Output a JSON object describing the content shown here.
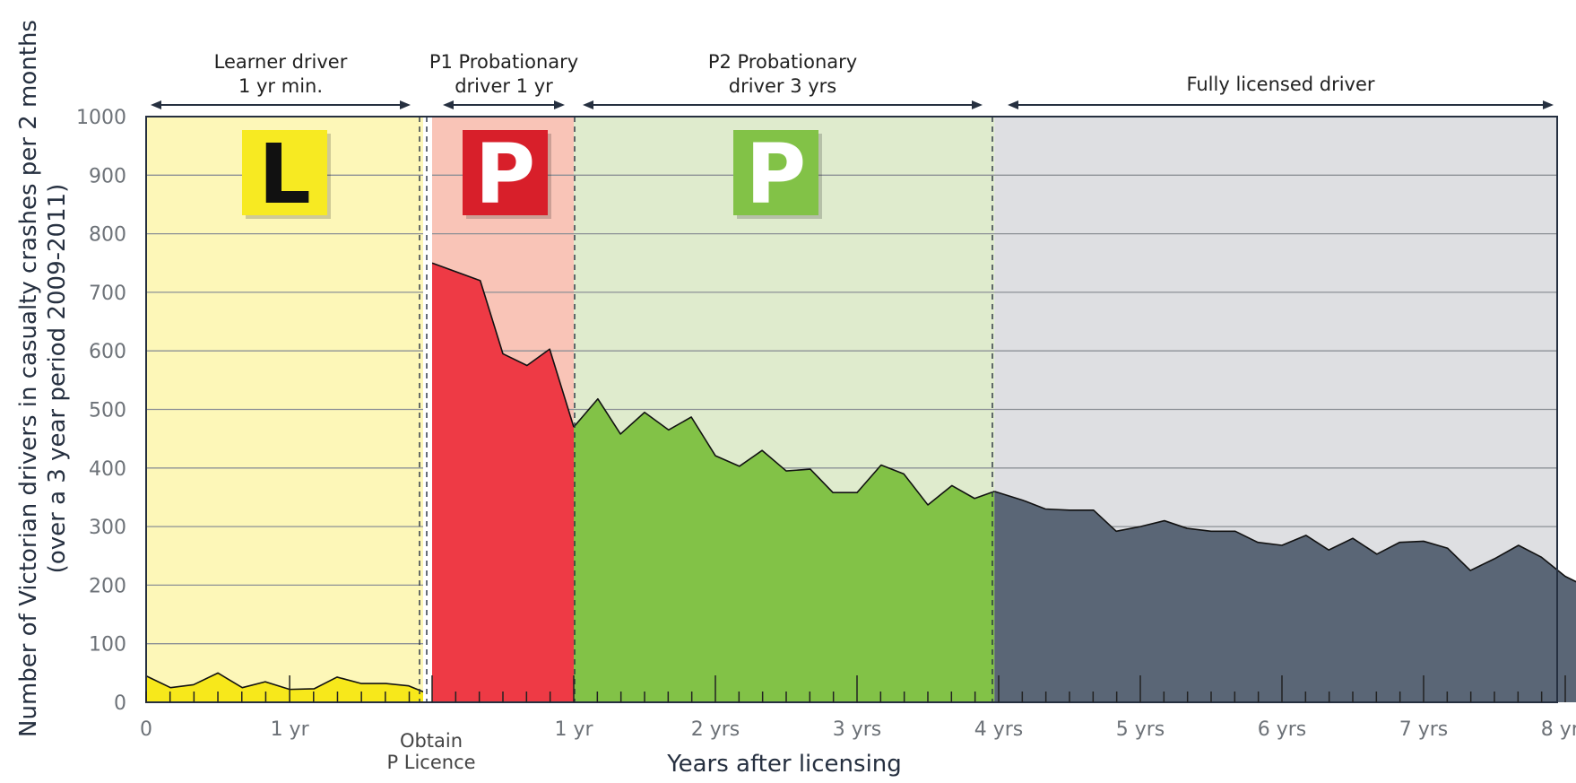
{
  "chart_data": {
    "type": "area",
    "title": "",
    "xlabel": "Years after licensing",
    "ylabel_line1": "Number of Victorian drivers in casualty crashes per 2 months",
    "ylabel_line2": "(over a 3 year period 2009-2011)",
    "ylim": [
      0,
      1000
    ],
    "yticks": [
      "0",
      "100",
      "200",
      "300",
      "400",
      "500",
      "600",
      "700",
      "800",
      "900",
      "1000"
    ],
    "grid": true,
    "x_tick_labels": [
      {
        "label": "0",
        "value": -2
      },
      {
        "label": "1 yr",
        "value": -1
      },
      {
        "label": "1 yr",
        "value": 1
      },
      {
        "label": "2 yrs",
        "value": 2
      },
      {
        "label": "3 yrs",
        "value": 3
      },
      {
        "label": "4 yrs",
        "value": 4
      },
      {
        "label": "5 yrs",
        "value": 5
      },
      {
        "label": "6 yrs",
        "value": 6
      },
      {
        "label": "7 yrs",
        "value": 7
      },
      {
        "label": "8 yrs",
        "value": 8
      }
    ],
    "obtain_label_line1": "Obtain",
    "obtain_label_line2": "P Licence",
    "phases": [
      {
        "name": "Learner driver",
        "line1": "Learner driver",
        "line2": "1 yr min.",
        "start": -2,
        "end": -0.07,
        "bg": "#fdf7b8",
        "fill": "#f7e81b",
        "badge": "L",
        "badge_color": "#f7ea22",
        "badge_text_color": "#111111"
      },
      {
        "name": "P1 Probationary driver",
        "line1": "P1 Probationary",
        "line2": "driver 1 yr",
        "start": 0,
        "end": 1,
        "bg": "#f9c4b7",
        "fill": "#ee3a45",
        "badge": "P",
        "badge_color": "#d81f2a",
        "badge_text_color": "#ffffff"
      },
      {
        "name": "P2 Probationary driver",
        "line1": "P2 Probationary",
        "line2": "driver 3 yrs",
        "start": 1,
        "end": 3.97,
        "bg": "#dfebcd",
        "fill": "#82c247",
        "badge": "P",
        "badge_color": "#82c247",
        "badge_text_color": "#ffffff"
      },
      {
        "name": "Fully licensed driver",
        "line1": "Fully licensed driver",
        "line2": "",
        "start": 3.97,
        "end": 8.1,
        "bg": "#dedfe2",
        "fill": "#5a6676",
        "badge": "",
        "badge_color": "",
        "badge_text_color": ""
      }
    ],
    "series": [
      {
        "name": "Learner driver",
        "x": [
          -2.0,
          -1.83,
          -1.67,
          -1.5,
          -1.33,
          -1.17,
          -1.0,
          -0.83,
          -0.67,
          -0.5,
          -0.33,
          -0.17,
          -0.07
        ],
        "y": [
          45,
          25,
          30,
          50,
          25,
          35,
          22,
          23,
          43,
          32,
          32,
          28,
          18
        ]
      },
      {
        "name": "P1 Probationary driver",
        "x": [
          0.0,
          0.34,
          0.5,
          0.67,
          0.83,
          1.0
        ],
        "y": [
          750,
          720,
          595,
          575,
          603,
          470
        ]
      },
      {
        "name": "P2 Probationary driver",
        "x": [
          1.0,
          1.17,
          1.33,
          1.5,
          1.67,
          1.83,
          2.0,
          2.17,
          2.33,
          2.5,
          2.67,
          2.83,
          3.0,
          3.17,
          3.33,
          3.5,
          3.67,
          3.83,
          3.97
        ],
        "y": [
          470,
          518,
          458,
          495,
          465,
          487,
          421,
          403,
          430,
          395,
          398,
          358,
          358,
          405,
          390,
          337,
          370,
          348,
          360
        ]
      },
      {
        "name": "Fully licensed driver",
        "x": [
          3.97,
          4.17,
          4.33,
          4.5,
          4.67,
          4.83,
          5.0,
          5.17,
          5.33,
          5.5,
          5.67,
          5.83,
          6.0,
          6.17,
          6.33,
          6.5,
          6.67,
          6.83,
          7.0,
          7.17,
          7.33,
          7.5,
          7.67,
          7.83,
          8.0,
          8.1
        ],
        "y": [
          360,
          345,
          330,
          328,
          328,
          292,
          300,
          310,
          297,
          292,
          292,
          273,
          268,
          285,
          260,
          280,
          253,
          273,
          275,
          263,
          225,
          245,
          268,
          248,
          215,
          203
        ]
      }
    ]
  }
}
